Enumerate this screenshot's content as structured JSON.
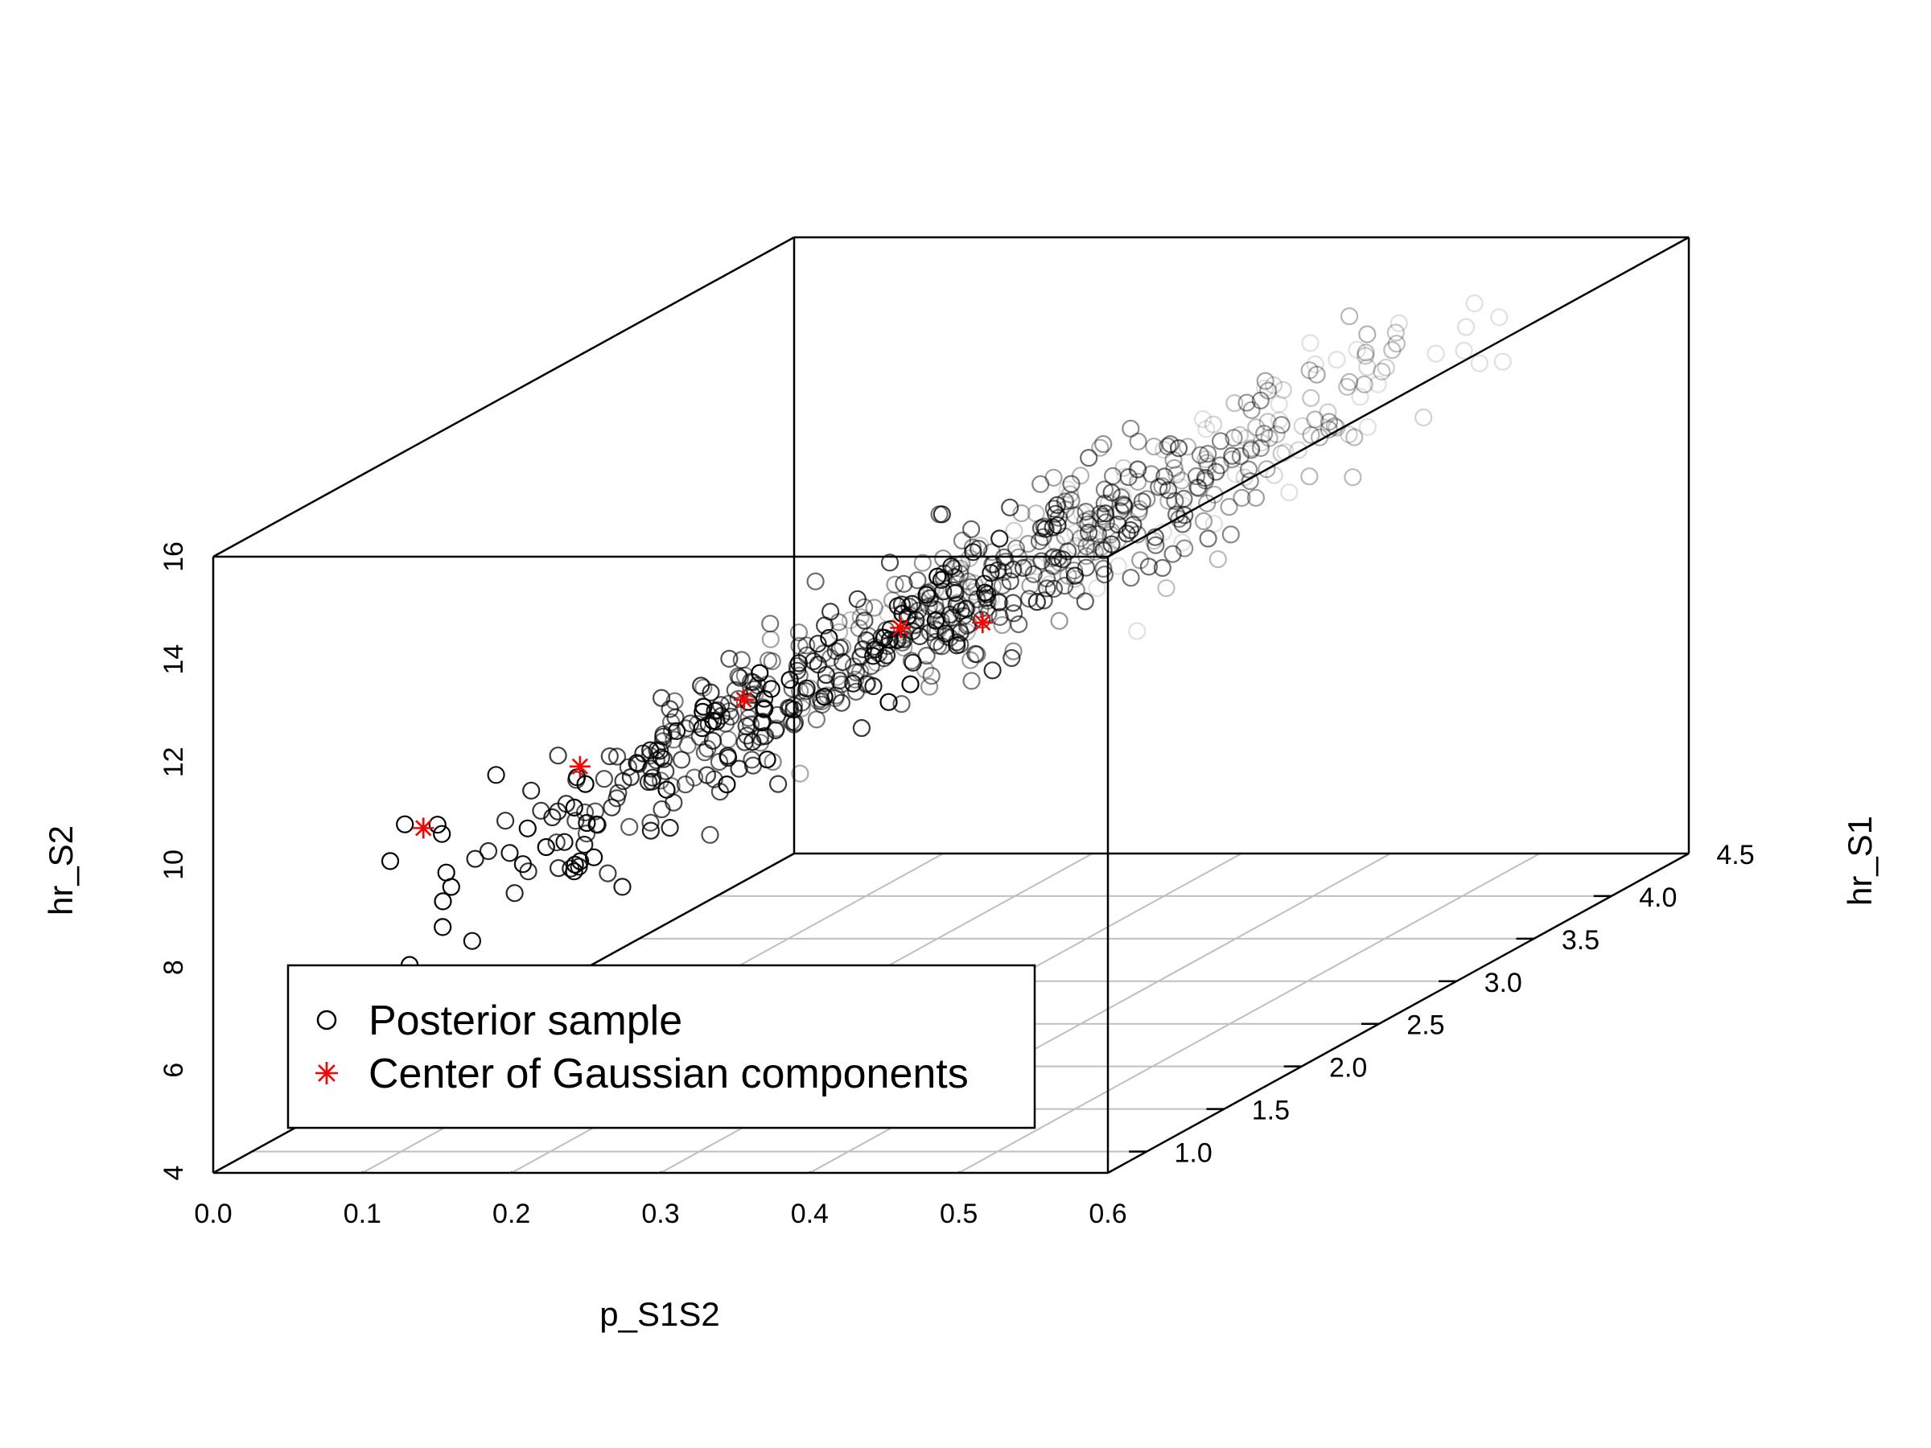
{
  "chart_data": {
    "type": "scatter",
    "projection": "3d-oblique",
    "title": "",
    "xlabel": "p_S1S2",
    "ylabel": "hr_S1",
    "zlabel": "hr_S2",
    "xlim": [
      0.0,
      0.6
    ],
    "ylim": [
      0.75,
      4.5
    ],
    "zlim": [
      4,
      16
    ],
    "x_ticks": [
      "0.0",
      "0.1",
      "0.2",
      "0.3",
      "0.4",
      "0.5",
      "0.6"
    ],
    "y_ticks": [
      "1.0",
      "1.5",
      "2.0",
      "2.5",
      "3.0",
      "3.5",
      "4.0",
      "4.5"
    ],
    "z_ticks": [
      "4",
      "6",
      "8",
      "10",
      "12",
      "14",
      "16"
    ],
    "grid": "floor",
    "legend_position": "bottom-left",
    "legend": [
      {
        "label": "Posterior sample",
        "marker": "circle",
        "color": "#000000"
      },
      {
        "label": "Center of Gaussian components",
        "marker": "asterisk",
        "color": "#ff0000"
      }
    ],
    "series": [
      {
        "name": "Posterior sample",
        "generator": {
          "count": 700,
          "x_range": [
            0.11,
            0.49
          ],
          "z_intercept": 7.4,
          "z_slope": 15.0,
          "z_sd": 0.65,
          "y_mean": 2.6,
          "y_sd": 1.0,
          "y_clip": [
            0.8,
            4.4
          ]
        }
      },
      {
        "name": "Center of Gaussian components",
        "points": [
          {
            "x": 0.115,
            "y": 1.0,
            "z": 10.3
          },
          {
            "x": 0.22,
            "y": 1.0,
            "z": 11.5
          },
          {
            "x": 0.33,
            "y": 1.0,
            "z": 12.8
          },
          {
            "x": 0.435,
            "y": 1.0,
            "z": 14.2
          },
          {
            "x": 0.49,
            "y": 1.0,
            "z": 14.3
          }
        ]
      }
    ]
  },
  "colors": {
    "axis": "#000000",
    "grid": "#bfbfbf",
    "points": "#000000",
    "centers": "#ff0000"
  }
}
